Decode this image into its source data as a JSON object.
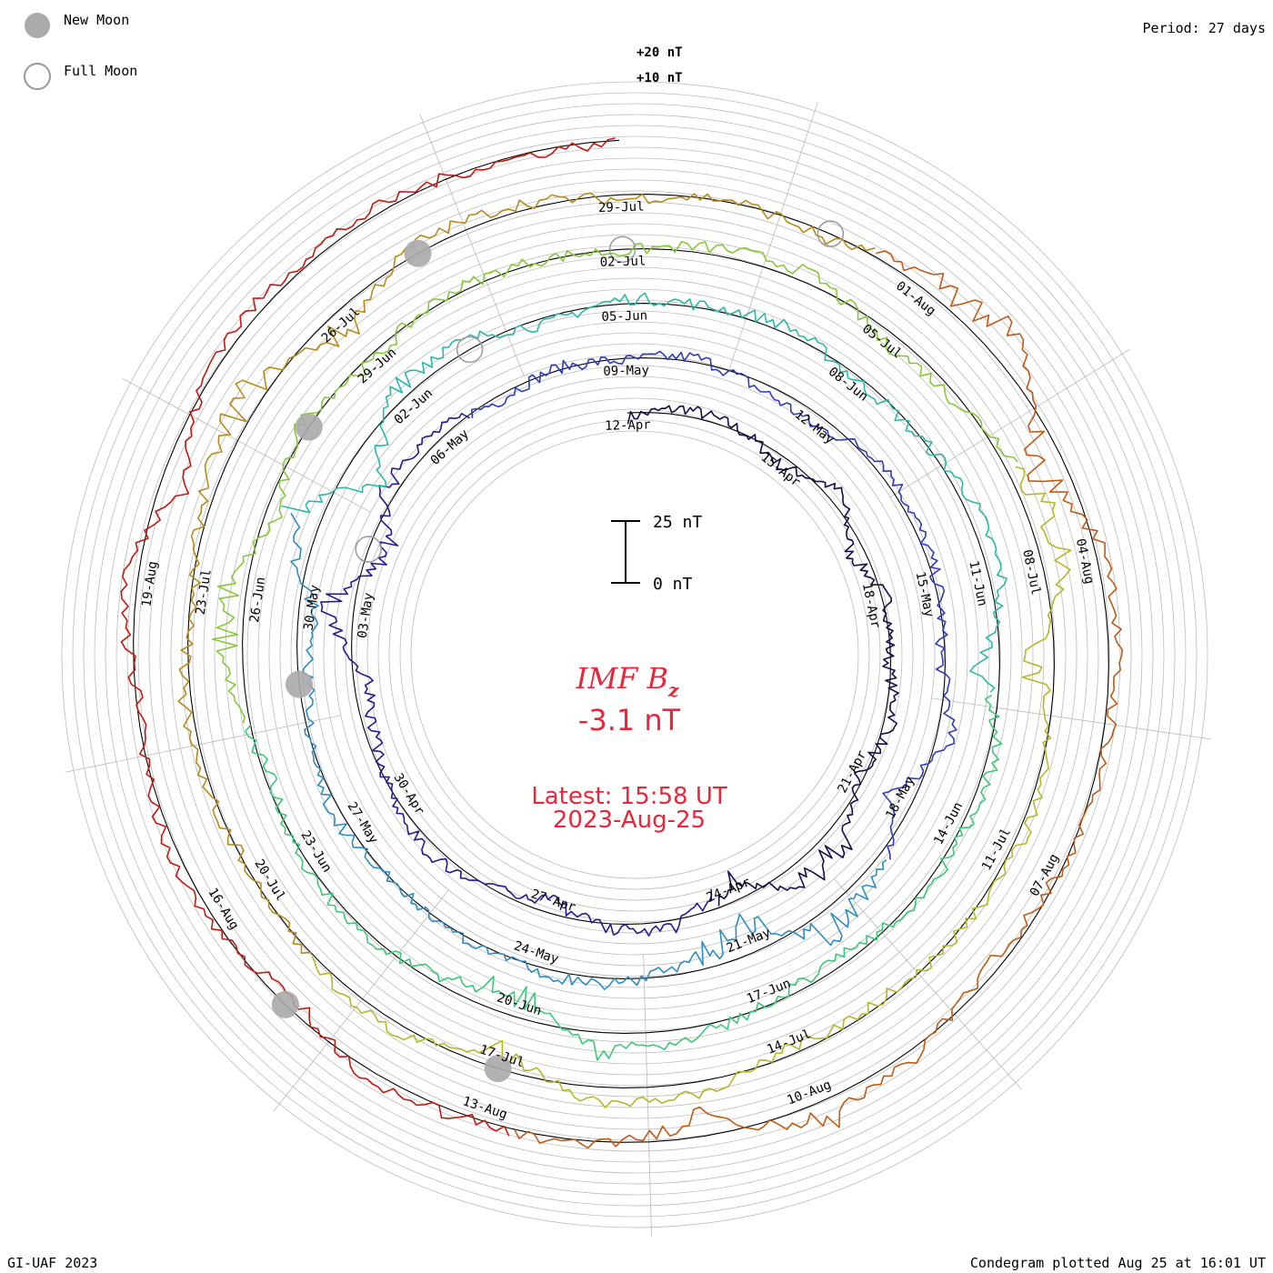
{
  "legend": {
    "new_moon": "New Moon",
    "full_moon": "Full Moon"
  },
  "period_label": "Period: 27 days",
  "credit": "GI-UAF 2023",
  "plotted_label": "Condegram plotted Aug 25 at 16:01 UT",
  "colors": {
    "grid": "#bbbbbb",
    "baseline": "#000000",
    "title": "#e8283a",
    "moon_fill": "#aaaaaa",
    "moon_stroke": "#999999",
    "rings": [
      "#1a0a4a",
      "#2a1890",
      "#2f3db8",
      "#2f8cc2",
      "#2cb8a8",
      "#3cc878",
      "#86c83a",
      "#b4b828",
      "#b88a1a",
      "#c05a14",
      "#c01a10"
    ]
  },
  "chart_data": {
    "type": "line",
    "subtype": "condegram spiral",
    "title": "IMF B",
    "title_subscript": "z",
    "current_value": "-3.1 nT",
    "latest_label": "Latest: 15:58 UT",
    "latest_date": "2023-Aug-25",
    "unit": "nT",
    "period_days": 27,
    "scale_bar": {
      "top_label": "25 nT",
      "bottom_label": "0 nT",
      "span_nT": 25
    },
    "ring_labels": [
      "+20 nT",
      "+10 nT"
    ],
    "start_date": "2023-Apr-12",
    "end_date": "2023-Aug-25",
    "date_labels": [
      "12-Apr",
      "15-Apr",
      "18-Apr",
      "21-Apr",
      "24-Apr",
      "27-Apr",
      "30-Apr",
      "03-May",
      "06-May",
      "09-May",
      "12-May",
      "15-May",
      "18-May",
      "21-May",
      "24-May",
      "27-May",
      "30-May",
      "02-Jun",
      "05-Jun",
      "08-Jun",
      "11-Jun",
      "14-Jun",
      "17-Jun",
      "20-Jun",
      "23-Jun",
      "26-Jun",
      "29-Jun",
      "02-Jul",
      "05-Jul",
      "08-Jul",
      "11-Jul",
      "14-Jul",
      "17-Jul",
      "20-Jul",
      "23-Jul",
      "26-Jul",
      "29-Jul",
      "01-Aug",
      "04-Aug",
      "07-Aug",
      "10-Aug",
      "13-Aug",
      "16-Aug",
      "19-Aug"
    ],
    "new_moon_days": [
      47,
      77,
      96,
      106,
      125
    ],
    "full_moon_days": [
      22,
      52,
      81,
      110
    ],
    "bz_series": [
      -2,
      3,
      1,
      -4,
      5,
      -6,
      2,
      -1,
      4,
      -3,
      6,
      8,
      -9,
      3,
      2,
      -5,
      -2,
      4,
      1,
      -3,
      -6,
      12,
      -11,
      7,
      3,
      -2,
      1,
      -1,
      2,
      -3,
      -5,
      4,
      2,
      1,
      -2,
      6,
      -8,
      5,
      9,
      -12,
      -4,
      3,
      2,
      1,
      -1,
      3,
      2,
      -4,
      -6,
      14,
      -15,
      8,
      4,
      -3,
      2,
      1,
      3,
      -2,
      -1,
      4,
      5,
      -7,
      3,
      2,
      1,
      -3,
      -2,
      4,
      7,
      -9,
      -3,
      2,
      1,
      -2,
      5,
      8,
      -6,
      4,
      -3,
      2,
      1,
      -1,
      3,
      4,
      -5,
      -2,
      6,
      9,
      -10,
      3,
      2,
      1,
      -2,
      -3,
      5,
      6,
      -8,
      4,
      2,
      -1,
      1,
      3,
      -2,
      5,
      7,
      -9,
      4,
      3,
      -2,
      1,
      -3,
      6,
      10,
      -12,
      5,
      3,
      2,
      -1,
      -4,
      3,
      8,
      -7,
      2,
      1,
      4,
      -5,
      3,
      2,
      -1,
      6,
      -8,
      4,
      3,
      2,
      -1
    ]
  }
}
